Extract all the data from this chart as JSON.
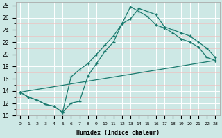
{
  "xlabel": "Humidex (Indice chaleur)",
  "bg_color": "#cde8e5",
  "line_color": "#1a7a6e",
  "grid_major_color": "#ffffff",
  "grid_minor_color": "#f5b8b8",
  "xlim": [
    -0.5,
    23.5
  ],
  "ylim": [
    10,
    28.5
  ],
  "xticks": [
    0,
    1,
    2,
    3,
    4,
    5,
    6,
    7,
    8,
    9,
    10,
    11,
    12,
    13,
    14,
    15,
    16,
    17,
    18,
    19,
    20,
    21,
    22,
    23
  ],
  "yticks": [
    10,
    12,
    14,
    16,
    18,
    20,
    22,
    24,
    26,
    28
  ],
  "line1_x": [
    0,
    1,
    2,
    3,
    4,
    5,
    6,
    7,
    8,
    9,
    10,
    11,
    12,
    13,
    14,
    15,
    16,
    17,
    18,
    19,
    20,
    21,
    22,
    23
  ],
  "line1_y": [
    13.8,
    13.0,
    12.5,
    11.8,
    11.5,
    10.5,
    12.0,
    12.3,
    16.5,
    18.5,
    20.5,
    22.0,
    25.0,
    25.8,
    27.5,
    27.0,
    26.5,
    24.5,
    24.0,
    23.5,
    23.0,
    22.0,
    21.0,
    19.5
  ],
  "line2_x": [
    0,
    1,
    2,
    3,
    4,
    5,
    6,
    7,
    8,
    9,
    10,
    11,
    12,
    13,
    14,
    15,
    16,
    17,
    18,
    19,
    20,
    21,
    22,
    23
  ],
  "line2_y": [
    13.8,
    13.0,
    12.5,
    11.8,
    11.5,
    10.5,
    16.3,
    17.5,
    18.5,
    20.0,
    21.5,
    23.0,
    25.0,
    27.8,
    27.0,
    26.2,
    24.8,
    24.3,
    23.5,
    22.5,
    22.0,
    21.2,
    19.5,
    19.0
  ],
  "line3_x": [
    0,
    23
  ],
  "line3_y": [
    13.8,
    19.0
  ]
}
